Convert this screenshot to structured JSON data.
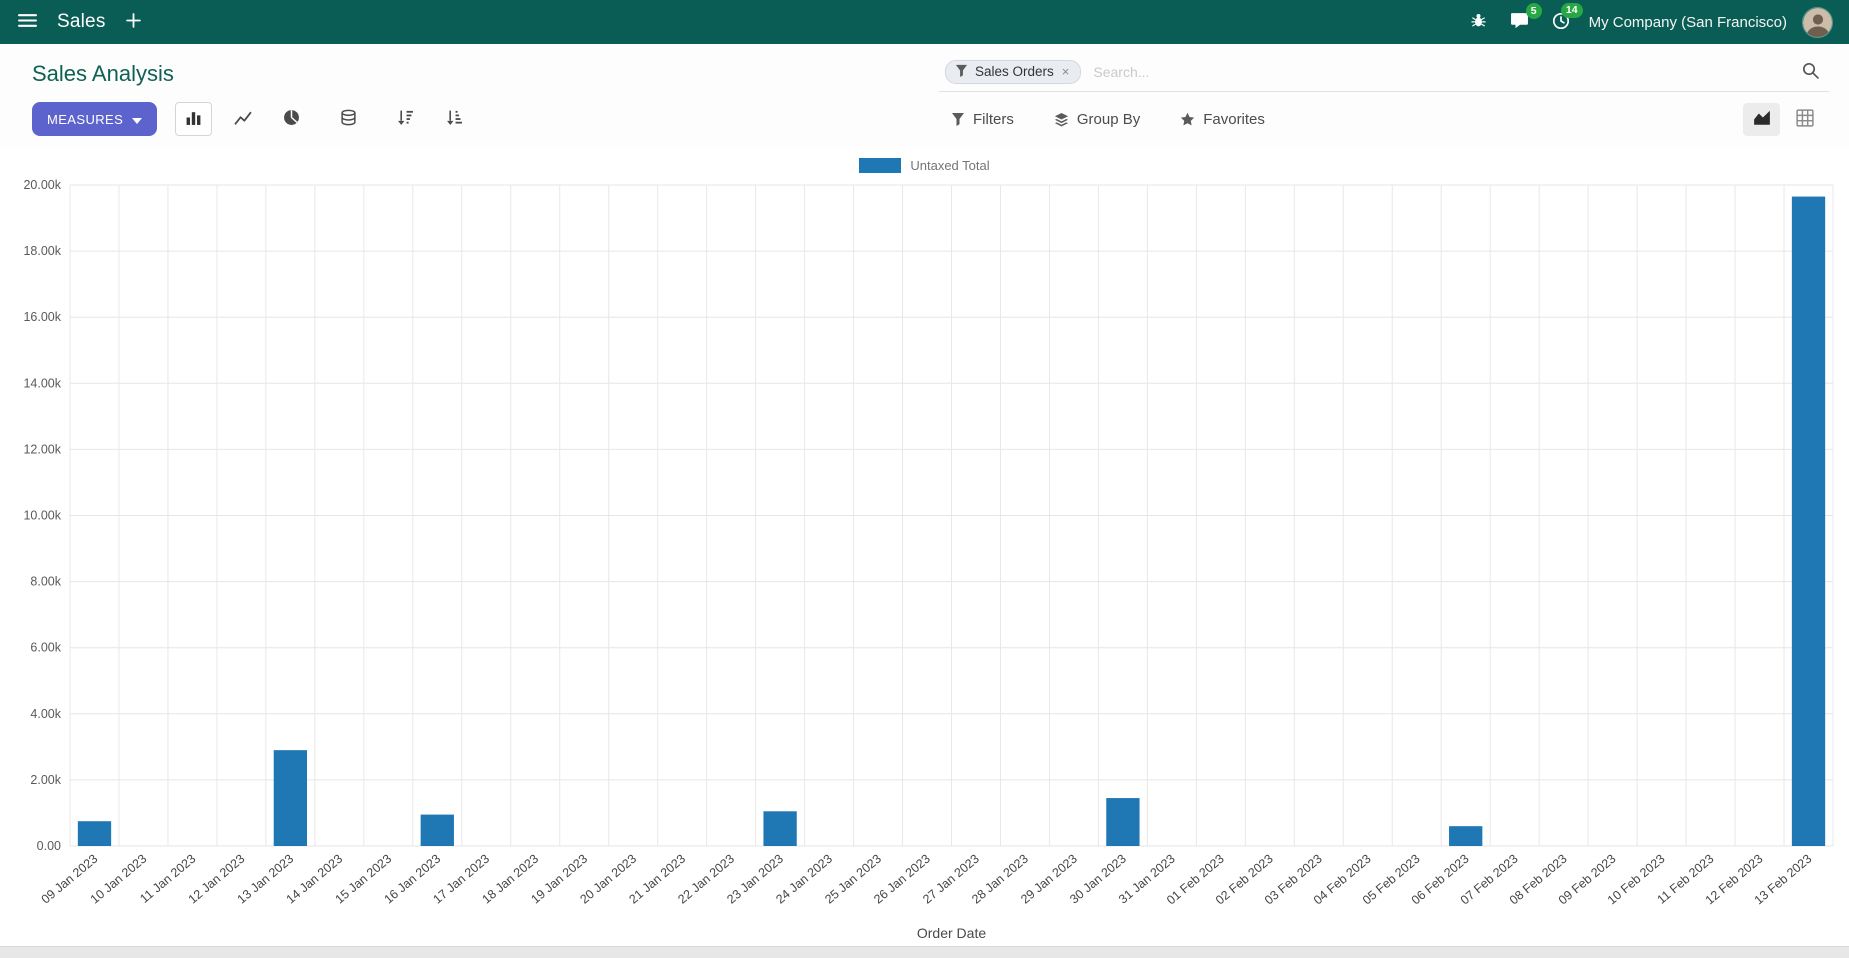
{
  "navbar": {
    "app_name": "Sales",
    "company_name": "My Company (San Francisco)",
    "messages_badge": "5",
    "activities_badge": "14"
  },
  "control_panel": {
    "title": "Sales Analysis",
    "measures_button": "MEASURES",
    "search": {
      "facet_label": "Sales Orders",
      "facet_remove": "×",
      "placeholder": "Search..."
    },
    "filters": "Filters",
    "group_by": "Group By",
    "favorites": "Favorites"
  },
  "chart_data": {
    "type": "bar",
    "title": "",
    "legend": [
      "Untaxed Total"
    ],
    "legend_position": "top",
    "xlabel": "Order Date",
    "ylabel": "",
    "ylim": [
      0,
      20000
    ],
    "grid": true,
    "ytick_labels": [
      "0.00",
      "2.00k",
      "4.00k",
      "6.00k",
      "8.00k",
      "10.00k",
      "12.00k",
      "14.00k",
      "16.00k",
      "18.00k",
      "20.00k"
    ],
    "categories": [
      "09 Jan 2023",
      "10 Jan 2023",
      "11 Jan 2023",
      "12 Jan 2023",
      "13 Jan 2023",
      "14 Jan 2023",
      "15 Jan 2023",
      "16 Jan 2023",
      "17 Jan 2023",
      "18 Jan 2023",
      "19 Jan 2023",
      "20 Jan 2023",
      "21 Jan 2023",
      "22 Jan 2023",
      "23 Jan 2023",
      "24 Jan 2023",
      "25 Jan 2023",
      "26 Jan 2023",
      "27 Jan 2023",
      "28 Jan 2023",
      "29 Jan 2023",
      "30 Jan 2023",
      "31 Jan 2023",
      "01 Feb 2023",
      "02 Feb 2023",
      "03 Feb 2023",
      "04 Feb 2023",
      "05 Feb 2023",
      "06 Feb 2023",
      "07 Feb 2023",
      "08 Feb 2023",
      "09 Feb 2023",
      "10 Feb 2023",
      "11 Feb 2023",
      "12 Feb 2023",
      "13 Feb 2023"
    ],
    "series": [
      {
        "name": "Untaxed Total",
        "color": "#1f77b4",
        "values": [
          750,
          0,
          0,
          0,
          2900,
          0,
          0,
          950,
          0,
          0,
          0,
          0,
          0,
          0,
          1050,
          0,
          0,
          0,
          0,
          0,
          0,
          1450,
          0,
          0,
          0,
          0,
          0,
          0,
          600,
          0,
          0,
          0,
          0,
          0,
          0,
          19650
        ]
      }
    ]
  }
}
